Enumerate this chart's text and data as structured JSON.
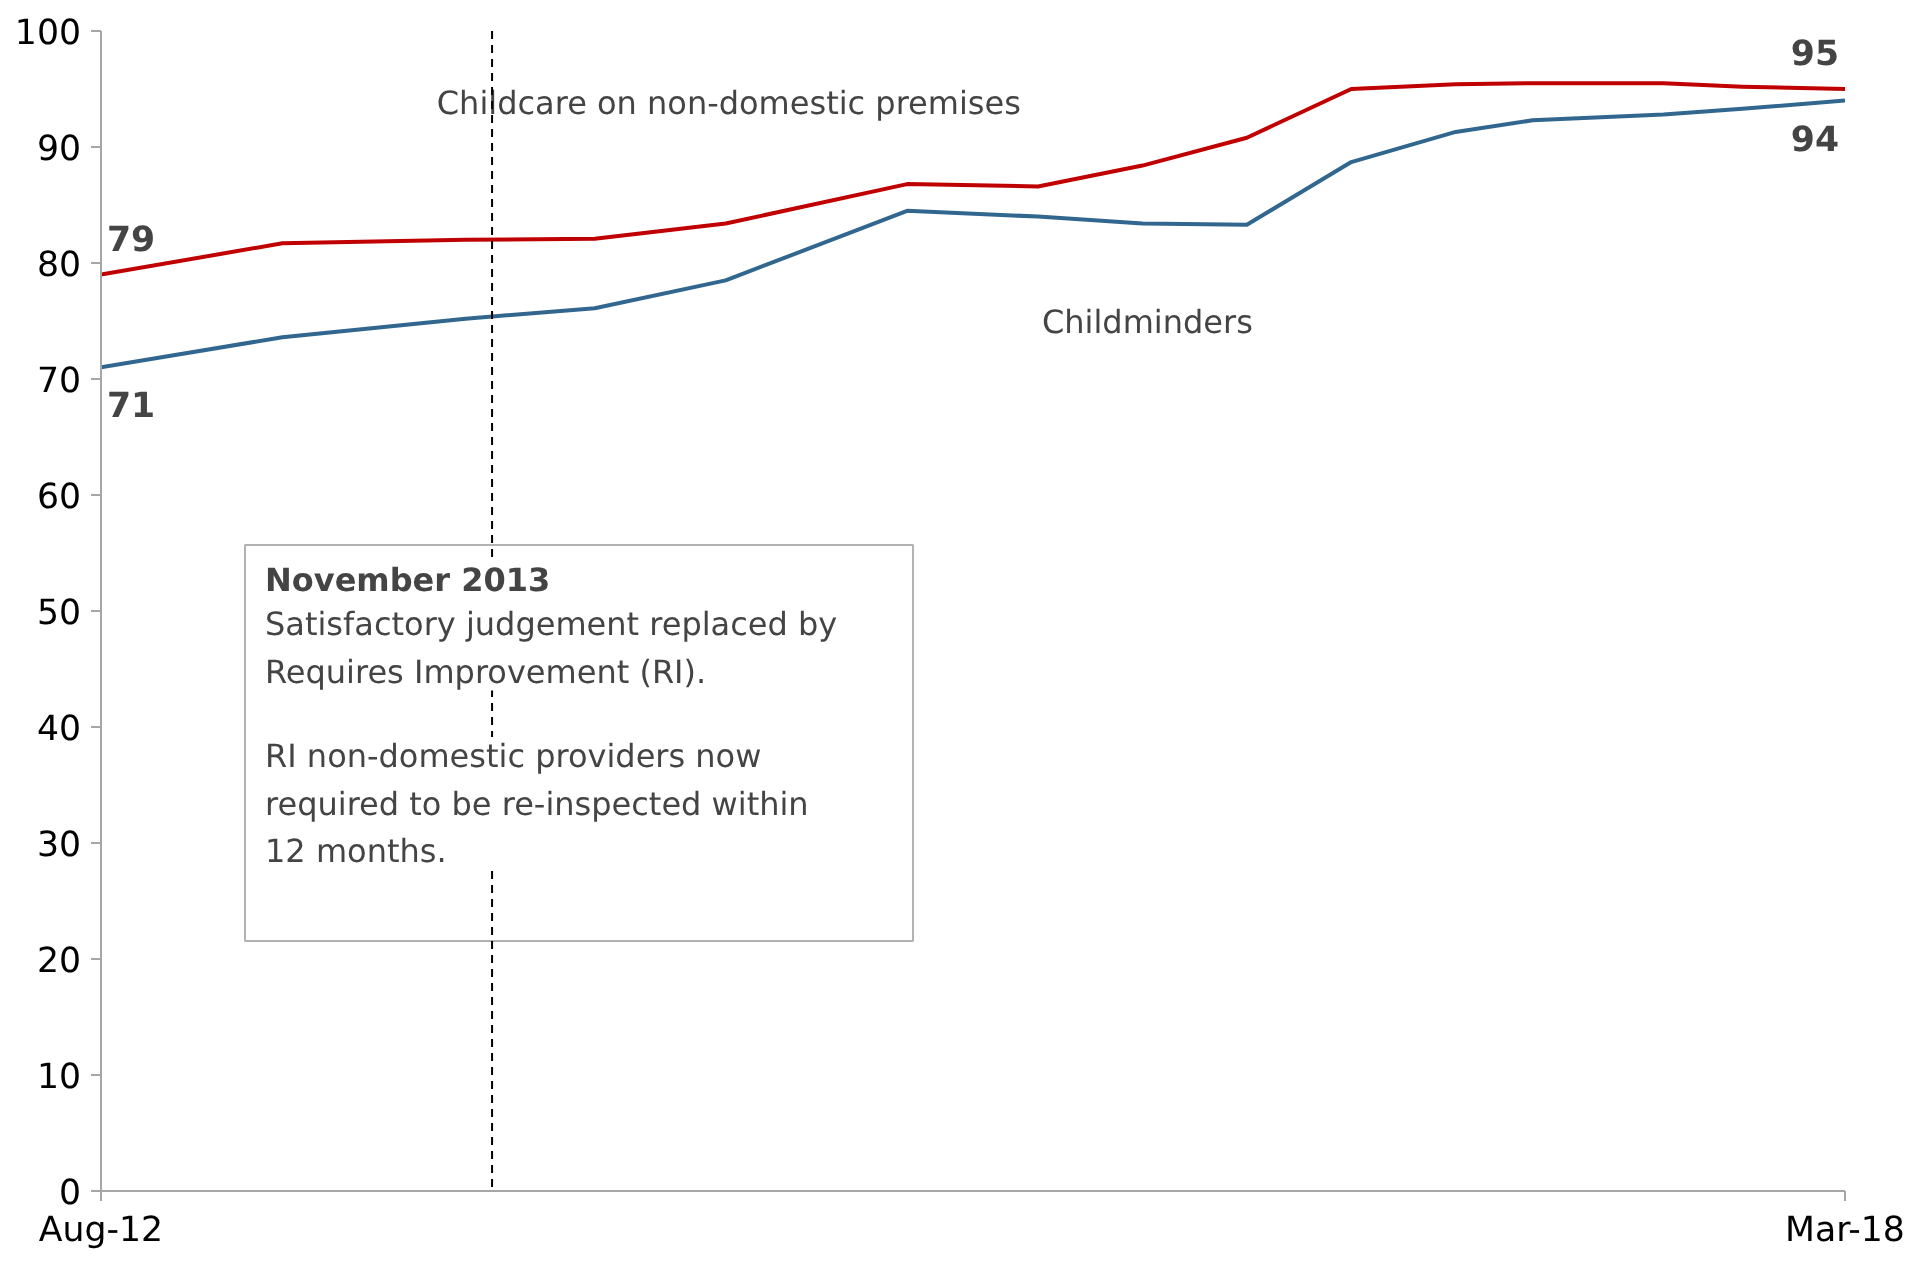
{
  "chart_data": {
    "type": "line",
    "x": [
      "2012-08",
      "2013-03",
      "2013-10",
      "2014-03",
      "2014-08",
      "2015-03",
      "2015-08",
      "2015-12",
      "2016-04",
      "2016-08",
      "2016-12",
      "2017-03",
      "2017-08",
      "2017-11",
      "2018-03"
    ],
    "series": [
      {
        "name": "Childcare on non-domestic premises",
        "color": "#c00000",
        "values": [
          79,
          81.7,
          82.0,
          82.1,
          83.4,
          86.8,
          86.6,
          88.4,
          90.8,
          95.0,
          95.4,
          95.5,
          95.5,
          95.2,
          95
        ],
        "value_labels": [
          "79",
          null,
          null,
          null,
          null,
          null,
          null,
          null,
          null,
          null,
          null,
          null,
          null,
          null,
          "95"
        ]
      },
      {
        "name": "Childminders",
        "color": "#31678f",
        "values": [
          71,
          73.6,
          75.2,
          76.1,
          78.5,
          84.5,
          84.0,
          83.4,
          83.3,
          88.7,
          91.3,
          92.3,
          92.8,
          93.3,
          94
        ],
        "value_labels": [
          "71",
          null,
          null,
          null,
          null,
          null,
          null,
          null,
          null,
          null,
          null,
          null,
          null,
          null,
          "94"
        ]
      }
    ],
    "xlim": [
      "2012-08",
      "2018-03"
    ],
    "xticks": [
      {
        "value": "2012-08",
        "label": "Aug-12"
      },
      {
        "value": "2018-03",
        "label": "Mar-18"
      }
    ],
    "ylim": [
      0,
      100
    ],
    "yticks": [
      0,
      10,
      20,
      30,
      40,
      50,
      60,
      70,
      80,
      90,
      100
    ],
    "grid": false,
    "marker": "none",
    "line_style": "solid",
    "ref_lines": [
      {
        "axis": "x",
        "value": "2013-11",
        "label": "November 2013",
        "line_style": "dashed",
        "color": "#000000"
      }
    ],
    "annotations": [
      "Satisfactory judgement replaced by Requires Improvement (RI).",
      "RI non-domestic providers now required to be re-inspected within 12 months."
    ]
  }
}
